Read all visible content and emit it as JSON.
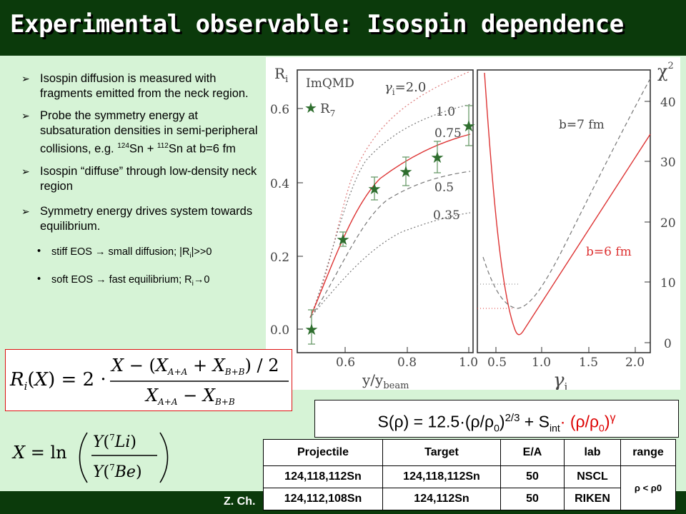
{
  "title": "Experimental observable: Isospin dependence",
  "bullets": [
    {
      "text": "Isospin diffusion is measured with fragments emitted from the neck region."
    },
    {
      "text_a": "Probe the symmetry energy at subsaturation densities in semi-peripheral collisions, e.g.",
      "sup1": "124",
      "mid1": "Sn + ",
      "sup2": "112",
      "tail": "Sn at b=6 fm"
    },
    {
      "text": "Isospin “diffuse” through low-density neck region"
    },
    {
      "text": "Symmetry energy drives system towards equilibrium."
    }
  ],
  "sub_bullets": [
    {
      "a": "stiff EOS ",
      "b": " small diffusion; |R",
      "c": "i",
      "d": "|>>0"
    },
    {
      "a": "soft EOS ",
      "b": " fast equilibrium; R",
      "c": "i",
      "d": "0"
    }
  ],
  "glyphs": {
    "arrow_bullet": "➢",
    "arrow_inline": "→",
    "dot": "•"
  },
  "symmetry_energy": {
    "lhs": "S(ρ) = 12.5·(ρ/ρ",
    "sub0": "0",
    "mid": ")",
    "exp": "2/3",
    "plus": " + S",
    "int": "int",
    "rest": "· (ρ/ρ",
    "sub1": "0",
    "close": ")",
    "gamma": "γ"
  },
  "credit": "Z. Ch.",
  "table": {
    "headers": [
      "Projectile",
      "Target",
      "E/A",
      "lab",
      "range"
    ],
    "rows": [
      [
        "124,118,112Sn",
        "124,118,112Sn",
        "50",
        "NSCL"
      ],
      [
        "124,112,108Sn",
        "124,112Sn",
        "50",
        "RIKEN"
      ]
    ],
    "range_value": "ρ < ρ0"
  },
  "formulas": {
    "ri": "R_i(X) = 2 · [X − (X_{A+A} + X_{B+B}) / 2] / [X_{A+A} − X_{B+B}]",
    "x": "X = ln( Y(7Li) / Y(7Be) )"
  },
  "plot": {
    "left_panel": {
      "ylabel": "R",
      "ylabel_sub": "i",
      "xlabel": "y/y",
      "xlabel_sub": "beam",
      "model_label": "ImQMD",
      "star_label": "R",
      "star_label_sub": "7",
      "gamma_label": "γ",
      "gamma_label_sub": "i",
      "gamma_value": "=2.0",
      "curve_labels": [
        "1.0",
        "0.75",
        "0.5",
        "0.35"
      ],
      "y_ticks": [
        "0.0",
        "0.2",
        "0.4",
        "0.6"
      ],
      "x_ticks": [
        "0.6",
        "0.8",
        "1.0"
      ]
    },
    "right_panel": {
      "ylabel": "χ",
      "ylabel_sup": "2",
      "xlabel": "γ",
      "xlabel_sub": "i",
      "labels": [
        "b=7 fm",
        "b=6 fm"
      ],
      "y_ticks": [
        "0",
        "10",
        "20",
        "30",
        "40"
      ],
      "x_ticks": [
        "0.5",
        "1.0",
        "1.5",
        "2.0"
      ]
    }
  },
  "colors": {
    "title_bar": "#0b3a0b",
    "panel": "#d6f3d6",
    "data_red": "#d33",
    "star_green": "#2e6e2e"
  }
}
